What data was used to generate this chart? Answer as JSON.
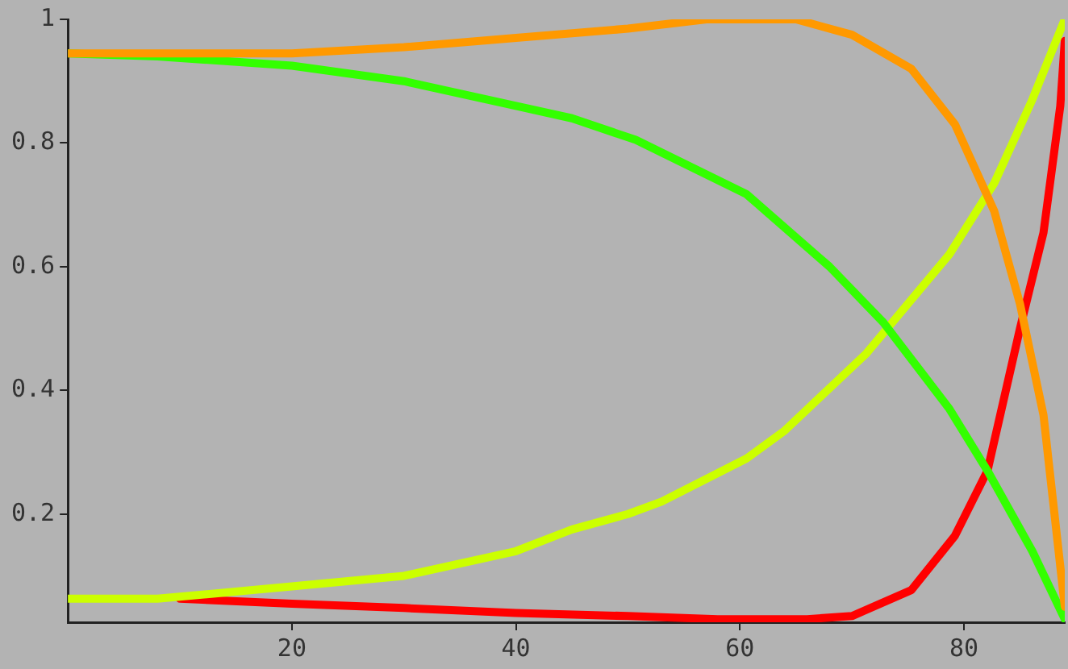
{
  "chart_data": {
    "type": "line",
    "xlim": [
      0,
      89
    ],
    "ylim": [
      0.025,
      1
    ],
    "xticks": [
      20,
      40,
      60,
      80
    ],
    "yticks": [
      0.2,
      0.4,
      0.6,
      0.8,
      1
    ],
    "grid": false,
    "legend": false,
    "marker": "none",
    "line_style": "solid",
    "series": [
      {
        "color": "#ff9900",
        "x": [
          0,
          10,
          20,
          30,
          40,
          50,
          57,
          65,
          70,
          75.3,
          79.2,
          82.7,
          85,
          87.1,
          89
        ],
        "values": [
          0.945,
          0.945,
          0.945,
          0.955,
          0.97,
          0.985,
          1,
          1,
          0.975,
          0.92,
          0.83,
          0.69,
          0.54,
          0.36,
          0.05
        ]
      },
      {
        "color": "#33ff00",
        "x": [
          0,
          8,
          20,
          30,
          40,
          45,
          50.7,
          60.6,
          68,
          72.8,
          78.7,
          82.1,
          86.1,
          89
        ],
        "values": [
          0.945,
          0.94,
          0.925,
          0.9,
          0.86,
          0.84,
          0.805,
          0.717,
          0.6,
          0.51,
          0.37,
          0.27,
          0.14,
          0.03
        ]
      },
      {
        "color": "#ccff00",
        "x": [
          0,
          8,
          20,
          30,
          40,
          45,
          50,
          53,
          60.6,
          64,
          71.3,
          78.7,
          82.7,
          86.1,
          89
        ],
        "values": [
          0.063,
          0.063,
          0.083,
          0.1,
          0.14,
          0.175,
          0.2,
          0.22,
          0.29,
          0.335,
          0.46,
          0.62,
          0.735,
          0.87,
          1
        ]
      },
      {
        "color": "#ff0000",
        "x": [
          10,
          20,
          30,
          40,
          50,
          55,
          58,
          66,
          70,
          75.3,
          79.2,
          82.1,
          85,
          87.1,
          88.6,
          89
        ],
        "values": [
          0.063,
          0.055,
          0.048,
          0.04,
          0.035,
          0.032,
          0.03,
          0.03,
          0.035,
          0.077,
          0.165,
          0.27,
          0.5,
          0.655,
          0.86,
          0.965
        ]
      }
    ]
  }
}
